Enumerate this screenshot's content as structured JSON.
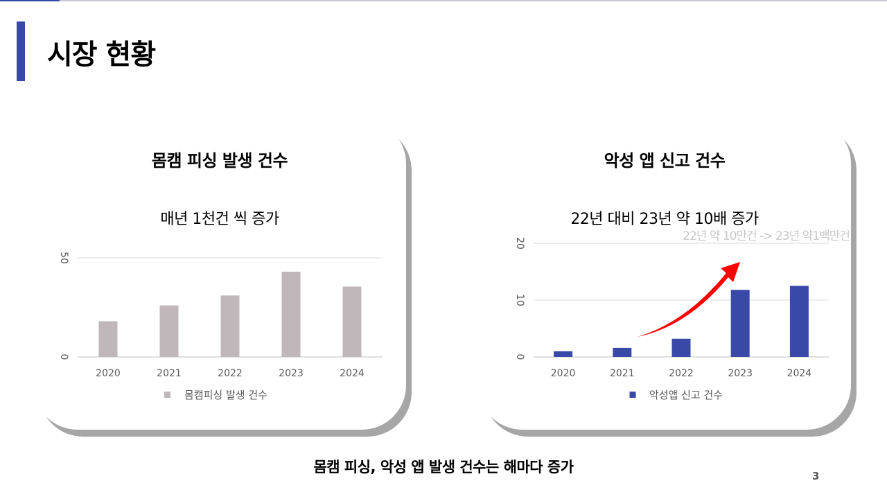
{
  "page": {
    "title": "시장 현황",
    "footer": "몸캠 피싱, 악성 앱 발생 건수는 해마다 증가",
    "page_number": "3",
    "accent_color": "#3949a8"
  },
  "chart_data": [
    {
      "type": "bar",
      "title": "몸캠 피싱 발생 건수",
      "subtitle": "매년 1천건 씩 증가",
      "categories": [
        "2020",
        "2021",
        "2022",
        "2023",
        "2024"
      ],
      "series": [
        {
          "name": "몸캠피싱 발생 건수",
          "values": [
            18,
            26,
            31,
            43,
            35.5
          ],
          "color": "#bfb7b9"
        }
      ],
      "ylim": [
        0,
        50
      ],
      "yticks": [
        0,
        50
      ],
      "grid": true,
      "legend": "bottom"
    },
    {
      "type": "bar",
      "title": "악성 앱 신고 건수",
      "subtitle": "22년 대비 23년 약 10배 증가",
      "annotation": "22년 약 10만건 -> 23년 약1백만건",
      "categories": [
        "2020",
        "2021",
        "2022",
        "2023",
        "2024"
      ],
      "series": [
        {
          "name": "악성앱 신고 건수",
          "values": [
            1,
            1.6,
            3.2,
            11.8,
            12.5
          ],
          "color": "#3949a8"
        }
      ],
      "ylim": [
        0,
        20
      ],
      "yticks": [
        0,
        10,
        20
      ],
      "grid": true,
      "legend": "bottom",
      "arrow_color": "#ff0000"
    }
  ]
}
